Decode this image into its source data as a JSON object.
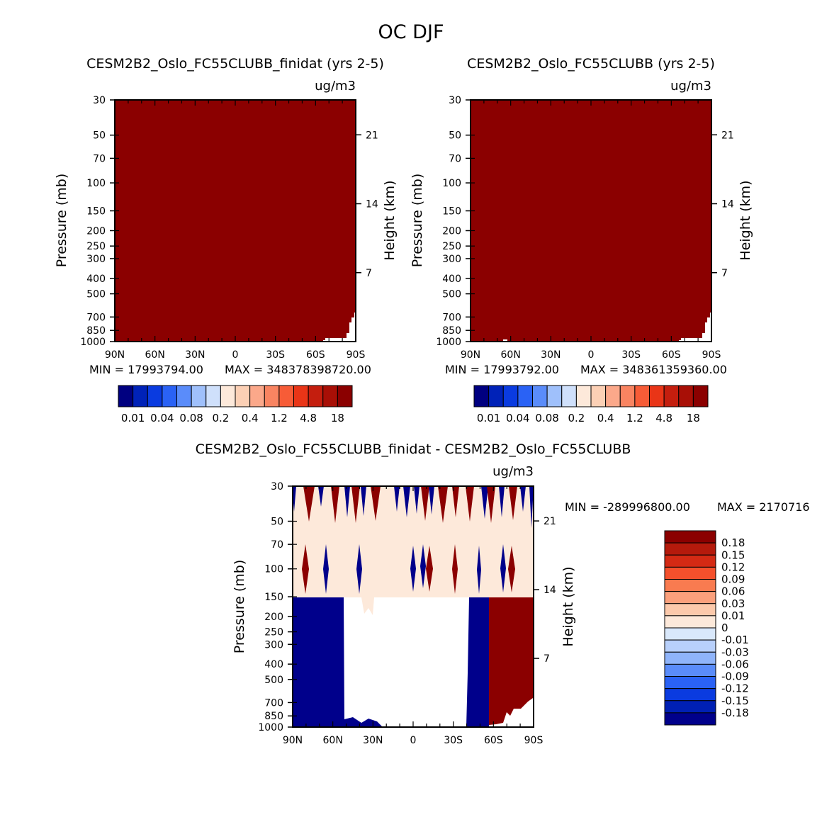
{
  "title": "OC DJF",
  "colors": {
    "dark_red": "#8b0000",
    "dark_blue": "#00008b",
    "light_fill": "#fde9da",
    "white": "#ffffff"
  },
  "axes": {
    "pressure_label": "Pressure (mb)",
    "height_label": "Height (km)",
    "units": "ug/m3",
    "pressure_ticks": [
      "30",
      "50",
      "70",
      "100",
      "150",
      "200",
      "250",
      "300",
      "400",
      "500",
      "700",
      "850",
      "1000"
    ],
    "pressure_values": [
      30,
      50,
      70,
      100,
      150,
      200,
      250,
      300,
      400,
      500,
      700,
      850,
      1000
    ],
    "height_ticks": [
      "21",
      "14",
      "7"
    ],
    "height_values": [
      21,
      14,
      7
    ],
    "lat_ticks": [
      "90N",
      "60N",
      "30N",
      "0",
      "30S",
      "60S",
      "90S"
    ],
    "lat_values": [
      90,
      60,
      30,
      0,
      -30,
      -60,
      -90
    ]
  },
  "chart_data": [
    {
      "type": "heatmap",
      "id": "panel1",
      "title": "CESM2B2_Oslo_FC55CLUBB_finidat (yrs 2-5)",
      "units": "ug/m3",
      "ylabel": "Pressure (mb)",
      "y2label": "Height (km)",
      "xlim": [
        90,
        -90
      ],
      "ylim": [
        30,
        1000
      ],
      "min_label": "MIN = 17993794.00",
      "max_label": "MAX = 348378398720.00",
      "field_value": "above 18 everywhere (top color)",
      "colorbar_labels": [
        "0.01",
        "0.04",
        "0.08",
        "0.2",
        "0.4",
        "1.2",
        "4.8",
        "18"
      ]
    },
    {
      "type": "heatmap",
      "id": "panel2",
      "title": "CESM2B2_Oslo_FC55CLUBB (yrs 2-5)",
      "units": "ug/m3",
      "ylabel": "Pressure (mb)",
      "y2label": "Height (km)",
      "xlim": [
        90,
        -90
      ],
      "ylim": [
        30,
        1000
      ],
      "min_label": "MIN = 17993792.00",
      "max_label": "MAX = 348361359360.00",
      "field_value": "above 18 everywhere (top color)",
      "colorbar_labels": [
        "0.01",
        "0.04",
        "0.08",
        "0.2",
        "0.4",
        "1.2",
        "4.8",
        "18"
      ]
    },
    {
      "type": "heatmap",
      "id": "diff",
      "title": "CESM2B2_Oslo_FC55CLUBB_finidat - CESM2B2_Oslo_FC55CLUBB",
      "units": "ug/m3",
      "ylabel": "Pressure (mb)",
      "y2label": "Height (km)",
      "xlim": [
        90,
        -90
      ],
      "ylim": [
        30,
        1000
      ],
      "min_label": "MIN = -289996800.00",
      "max_label": "MAX = 2170716",
      "colorbar_labels": [
        "0.18",
        "0.15",
        "0.12",
        "0.09",
        "0.06",
        "0.03",
        "0.01",
        "0",
        "-0.01",
        "-0.03",
        "-0.06",
        "-0.09",
        "-0.12",
        "-0.15",
        "-0.18"
      ],
      "regions": [
        {
          "value": "small positive (0 to 0.01)",
          "lat_range": [
            90,
            -90
          ],
          "p_range": [
            30,
            150
          ]
        },
        {
          "value": "below -0.18",
          "lat_range": [
            90,
            52
          ],
          "p_range": [
            150,
            1000
          ]
        },
        {
          "value": "near zero",
          "lat_range": [
            52,
            -42
          ],
          "p_range": [
            150,
            1000
          ]
        },
        {
          "value": "below -0.18",
          "lat_range": [
            -42,
            -57
          ],
          "p_range": [
            150,
            1000
          ]
        },
        {
          "value": "above 0.18",
          "lat_range": [
            -57,
            -90
          ],
          "p_range": [
            150,
            1000
          ]
        }
      ]
    }
  ]
}
